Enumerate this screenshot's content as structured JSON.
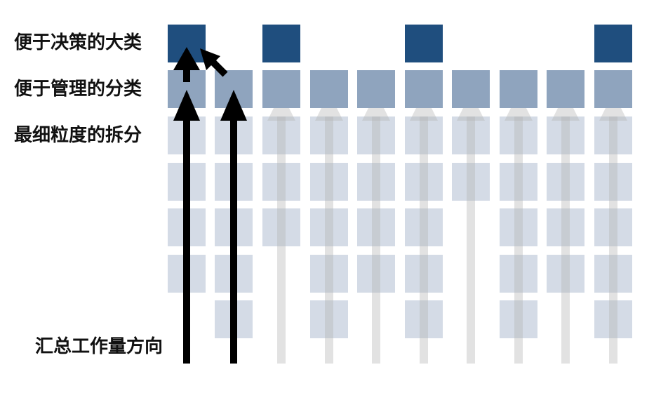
{
  "labels": {
    "decision_category": "便于决策的大类",
    "management_category": "便于管理的分类",
    "finest_split": "最细粒度的拆分",
    "aggregation_direction": "汇总工作量方向"
  },
  "colors": {
    "decision_block": "#1f4e7e",
    "management_block": "#8fa4be",
    "fine_block": "#d4dbe6",
    "faded_arrow": "#b3b3b3",
    "highlight_arrow": "#000000"
  },
  "grid": {
    "columns": 10,
    "decision_columns": [
      0,
      2,
      5,
      9
    ],
    "management_columns": [
      0,
      1,
      2,
      3,
      4,
      5,
      6,
      7,
      8,
      9
    ],
    "fine_rows_per_column": [
      4,
      5,
      3,
      5,
      4,
      5,
      2,
      5,
      4,
      5
    ],
    "faded_arrow_columns": [
      2,
      3,
      4,
      5,
      6,
      7,
      8,
      9
    ],
    "highlight_arrow_columns": [
      0,
      1
    ]
  }
}
